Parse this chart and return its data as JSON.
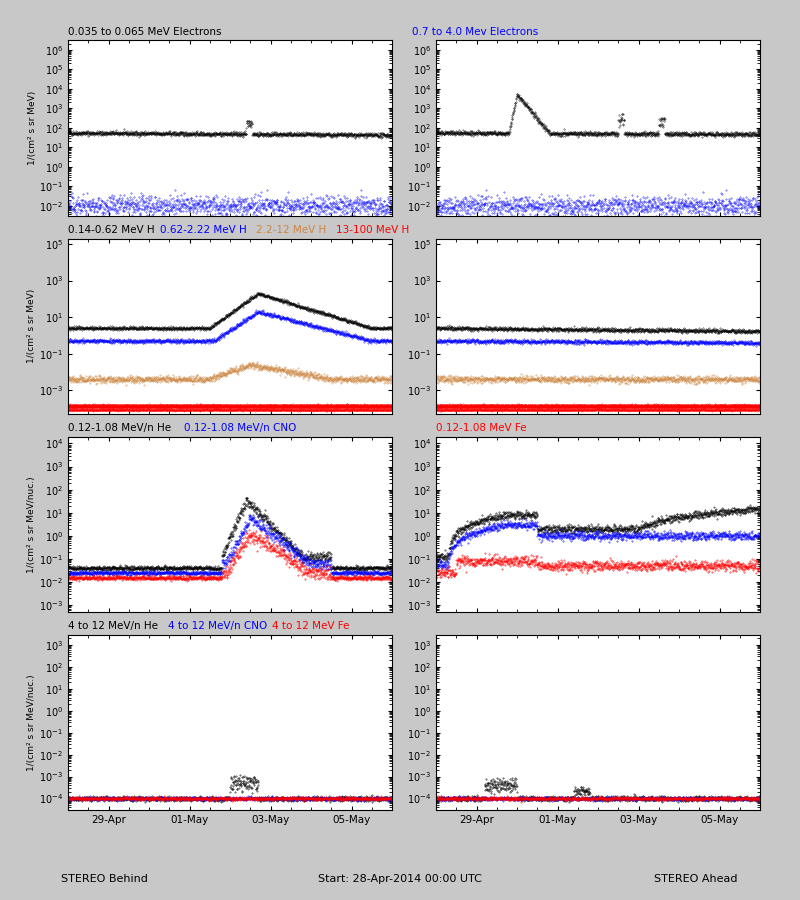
{
  "title_left": "STEREO Behind",
  "title_right": "STEREO Ahead",
  "start_label": "Start: 28-Apr-2014 00:00 UTC",
  "x_tick_positions": [
    1,
    3,
    5,
    7
  ],
  "x_tick_labels": [
    "29-Apr",
    "01-May",
    "03-May",
    "05-May"
  ],
  "x_range": [
    0,
    8
  ],
  "fig_bg": "#c8c8c8",
  "panel_bg": "white",
  "panels": [
    {
      "row": 0,
      "ylim": [
        0.003,
        3000000.0
      ],
      "ylabel": "1/(cm² s sr MeV)",
      "legend_line1": [
        {
          "text": "0.035 to 0.065 MeV Electrons",
          "color": "black"
        },
        {
          "text": "0.7 to 4.0 Mev Electrons",
          "color": "blue"
        }
      ]
    },
    {
      "row": 1,
      "ylim": [
        5e-05,
        200000.0
      ],
      "ylabel": "1/(cm² s sr MeV)",
      "legend_line1": [
        {
          "text": "0.14-0.62 MeV H",
          "color": "black"
        },
        {
          "text": "0.62-2.22 MeV H",
          "color": "blue"
        },
        {
          "text": "2.2-12 MeV H",
          "color": "peru"
        },
        {
          "text": "13-100 MeV H",
          "color": "red"
        }
      ]
    },
    {
      "row": 2,
      "ylim": [
        0.0005,
        20000.0
      ],
      "ylabel": "1/(cm² s sr MeV/nuc.)",
      "legend_line1": [
        {
          "text": "0.12-1.08 MeV/n He",
          "color": "black"
        },
        {
          "text": "0.12-1.08 MeV/n CNO",
          "color": "blue"
        },
        {
          "text": "0.12-1.08 MeV Fe",
          "color": "red"
        }
      ]
    },
    {
      "row": 3,
      "ylim": [
        3e-05,
        3000.0
      ],
      "ylabel": "1/(cm² s sr MeV/nuc.)",
      "legend_line1": [
        {
          "text": "4 to 12 MeV/n He",
          "color": "black"
        },
        {
          "text": "4 to 12 MeV/n CNO",
          "color": "blue"
        },
        {
          "text": "4 to 12 MeV Fe",
          "color": "red"
        }
      ]
    }
  ]
}
